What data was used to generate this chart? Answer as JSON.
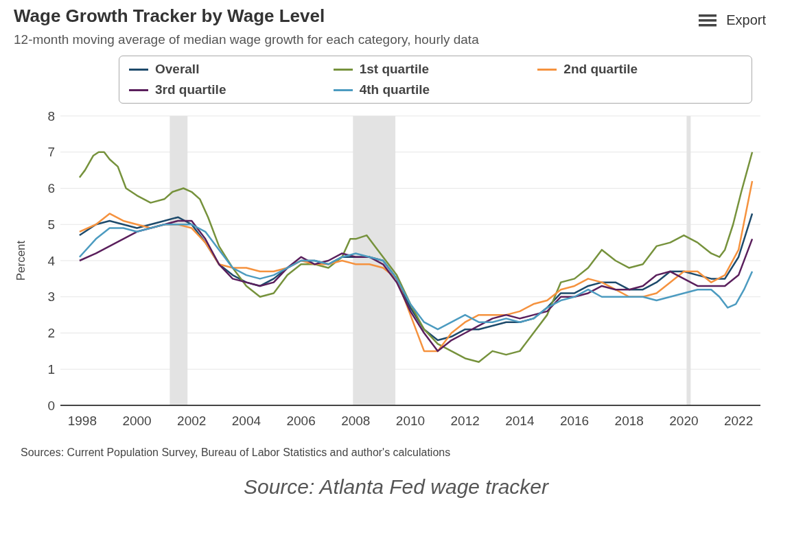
{
  "chart_data": {
    "type": "line",
    "title": "Wage Growth Tracker by Wage Level",
    "subtitle": "12-month moving average of median wage growth for each category, hourly data",
    "ylabel": "Percent",
    "xlim": [
      1997.2,
      2022.8
    ],
    "xticks": [
      1998,
      2000,
      2002,
      2004,
      2006,
      2008,
      2010,
      2012,
      2014,
      2016,
      2018,
      2020,
      2022
    ],
    "ylim": [
      0,
      8
    ],
    "yticks": [
      0,
      1,
      2,
      3,
      4,
      5,
      6,
      7,
      8
    ],
    "grid": "y",
    "legend": "top",
    "marker": "none",
    "line_style": "solid",
    "bands": [
      {
        "axis": "x",
        "from": 2001.2,
        "to": 2001.85,
        "color": "#e3e3e3"
      },
      {
        "axis": "x",
        "from": 2007.9,
        "to": 2009.45,
        "color": "#e3e3e3"
      },
      {
        "axis": "x",
        "from": 2020.1,
        "to": 2020.25,
        "color": "#e3e3e3"
      }
    ],
    "annotations": [
      "Export",
      "Sources: Current Population Survey, Bureau of Labor Statistics and author's calculations",
      "Source: Atlanta Fed wage tracker"
    ],
    "series": [
      {
        "name": "Overall",
        "color": "#1d4a6b",
        "x": [
          1997.9,
          1998.5,
          1999,
          1999.5,
          2000,
          2000.5,
          2001,
          2001.5,
          2002,
          2002.5,
          2003,
          2003.5,
          2004,
          2004.5,
          2005,
          2005.5,
          2006,
          2006.5,
          2007,
          2007.5,
          2008,
          2008.5,
          2009,
          2009.5,
          2010,
          2010.5,
          2011,
          2011.5,
          2012,
          2012.5,
          2013,
          2013.5,
          2014,
          2014.5,
          2015,
          2015.5,
          2016,
          2016.5,
          2017,
          2017.5,
          2018,
          2018.5,
          2019,
          2019.5,
          2020,
          2020.5,
          2021,
          2021.5,
          2022,
          2022.5
        ],
        "values": [
          4.7,
          5.0,
          5.1,
          5.0,
          4.9,
          5.0,
          5.1,
          5.2,
          5.0,
          4.5,
          3.9,
          3.6,
          3.4,
          3.3,
          3.5,
          3.8,
          4.0,
          4.0,
          3.9,
          4.1,
          4.1,
          4.1,
          4.0,
          3.5,
          2.7,
          2.1,
          1.8,
          1.9,
          2.1,
          2.1,
          2.2,
          2.3,
          2.3,
          2.4,
          2.7,
          3.1,
          3.1,
          3.3,
          3.4,
          3.4,
          3.2,
          3.2,
          3.4,
          3.7,
          3.7,
          3.6,
          3.5,
          3.5,
          4.1,
          5.3
        ]
      },
      {
        "name": "1st quartile",
        "color": "#76923c",
        "x": [
          1997.9,
          1998.1,
          1998.4,
          1998.6,
          1998.8,
          1999,
          1999.3,
          1999.6,
          2000,
          2000.5,
          2001,
          2001.3,
          2001.7,
          2002,
          2002.3,
          2002.6,
          2003,
          2003.5,
          2004,
          2004.5,
          2005,
          2005.5,
          2006,
          2006.5,
          2007,
          2007.5,
          2007.8,
          2008,
          2008.4,
          2008.7,
          2009,
          2009.5,
          2010,
          2010.5,
          2011,
          2011.5,
          2012,
          2012.5,
          2013,
          2013.5,
          2014,
          2014.5,
          2015,
          2015.5,
          2016,
          2016.5,
          2017,
          2017.5,
          2018,
          2018.5,
          2019,
          2019.5,
          2020,
          2020.5,
          2021,
          2021.3,
          2021.5,
          2021.8,
          2022.1,
          2022.5
        ],
        "values": [
          6.3,
          6.5,
          6.9,
          7.0,
          7.0,
          6.8,
          6.6,
          6.0,
          5.8,
          5.6,
          5.7,
          5.9,
          6.0,
          5.9,
          5.7,
          5.2,
          4.4,
          3.8,
          3.3,
          3.0,
          3.1,
          3.6,
          3.9,
          3.9,
          3.8,
          4.1,
          4.6,
          4.6,
          4.7,
          4.4,
          4.1,
          3.6,
          2.8,
          2.1,
          1.7,
          1.5,
          1.3,
          1.2,
          1.5,
          1.4,
          1.5,
          2.0,
          2.5,
          3.4,
          3.5,
          3.8,
          4.3,
          4.0,
          3.8,
          3.9,
          4.4,
          4.5,
          4.7,
          4.5,
          4.2,
          4.1,
          4.3,
          5.0,
          5.9,
          7.0
        ]
      },
      {
        "name": "2nd quartile",
        "color": "#f5923e",
        "x": [
          1997.9,
          1998.5,
          1999,
          1999.5,
          2000,
          2000.5,
          2001,
          2001.5,
          2002,
          2002.5,
          2003,
          2003.5,
          2004,
          2004.5,
          2005,
          2005.5,
          2006,
          2006.5,
          2007,
          2007.5,
          2008,
          2008.5,
          2009,
          2009.5,
          2010,
          2010.5,
          2011,
          2011.5,
          2012,
          2012.5,
          2013,
          2013.5,
          2014,
          2014.5,
          2015,
          2015.5,
          2016,
          2016.5,
          2017,
          2017.5,
          2018,
          2018.5,
          2019,
          2019.5,
          2020,
          2020.5,
          2021,
          2021.5,
          2022,
          2022.5
        ],
        "values": [
          4.8,
          5.0,
          5.3,
          5.1,
          5.0,
          4.9,
          5.0,
          5.0,
          4.9,
          4.5,
          3.9,
          3.8,
          3.8,
          3.7,
          3.7,
          3.8,
          4.0,
          3.9,
          3.9,
          4.0,
          3.9,
          3.9,
          3.8,
          3.5,
          2.5,
          1.5,
          1.5,
          2.0,
          2.3,
          2.5,
          2.5,
          2.5,
          2.6,
          2.8,
          2.9,
          3.2,
          3.3,
          3.5,
          3.4,
          3.2,
          3.0,
          3.0,
          3.1,
          3.4,
          3.7,
          3.7,
          3.4,
          3.6,
          4.3,
          6.2
        ]
      },
      {
        "name": "3rd quartile",
        "color": "#5a1f5c",
        "x": [
          1997.9,
          1998.5,
          1999,
          1999.5,
          2000,
          2000.5,
          2001,
          2001.5,
          2002,
          2002.5,
          2003,
          2003.5,
          2004,
          2004.5,
          2005,
          2005.5,
          2006,
          2006.5,
          2007,
          2007.5,
          2008,
          2008.5,
          2009,
          2009.5,
          2010,
          2010.5,
          2011,
          2011.5,
          2012,
          2012.5,
          2013,
          2013.5,
          2014,
          2014.5,
          2015,
          2015.5,
          2016,
          2016.5,
          2017,
          2017.5,
          2018,
          2018.5,
          2019,
          2019.5,
          2020,
          2020.5,
          2021,
          2021.5,
          2022,
          2022.5
        ],
        "values": [
          4.0,
          4.2,
          4.4,
          4.6,
          4.8,
          4.9,
          5.0,
          5.1,
          5.1,
          4.6,
          3.9,
          3.5,
          3.4,
          3.3,
          3.4,
          3.8,
          4.1,
          3.9,
          4.0,
          4.2,
          4.1,
          4.1,
          3.9,
          3.4,
          2.6,
          2.0,
          1.5,
          1.8,
          2.0,
          2.2,
          2.4,
          2.5,
          2.4,
          2.5,
          2.6,
          3.0,
          3.0,
          3.1,
          3.3,
          3.2,
          3.2,
          3.3,
          3.6,
          3.7,
          3.5,
          3.3,
          3.3,
          3.3,
          3.6,
          4.6
        ]
      },
      {
        "name": "4th quartile",
        "color": "#4c9bc0",
        "x": [
          1997.9,
          1998.5,
          1999,
          1999.5,
          2000,
          2000.5,
          2001,
          2001.5,
          2002,
          2002.5,
          2003,
          2003.5,
          2004,
          2004.5,
          2005,
          2005.5,
          2006,
          2006.5,
          2007,
          2007.5,
          2008,
          2008.5,
          2009,
          2009.5,
          2010,
          2010.5,
          2011,
          2011.5,
          2012,
          2012.5,
          2013,
          2013.5,
          2014,
          2014.5,
          2015,
          2015.5,
          2016,
          2016.5,
          2017,
          2017.5,
          2018,
          2018.5,
          2019,
          2019.5,
          2020,
          2020.5,
          2021,
          2021.3,
          2021.6,
          2021.9,
          2022.2,
          2022.5
        ],
        "values": [
          4.1,
          4.6,
          4.9,
          4.9,
          4.8,
          4.9,
          5.0,
          5.0,
          5.0,
          4.8,
          4.3,
          3.8,
          3.6,
          3.5,
          3.6,
          3.8,
          4.0,
          4.0,
          3.9,
          4.1,
          4.2,
          4.1,
          4.0,
          3.5,
          2.8,
          2.3,
          2.1,
          2.3,
          2.5,
          2.3,
          2.3,
          2.4,
          2.3,
          2.4,
          2.7,
          2.9,
          3.0,
          3.2,
          3.0,
          3.0,
          3.0,
          3.0,
          2.9,
          3.0,
          3.1,
          3.2,
          3.2,
          3.0,
          2.7,
          2.8,
          3.2,
          3.7
        ]
      }
    ]
  }
}
